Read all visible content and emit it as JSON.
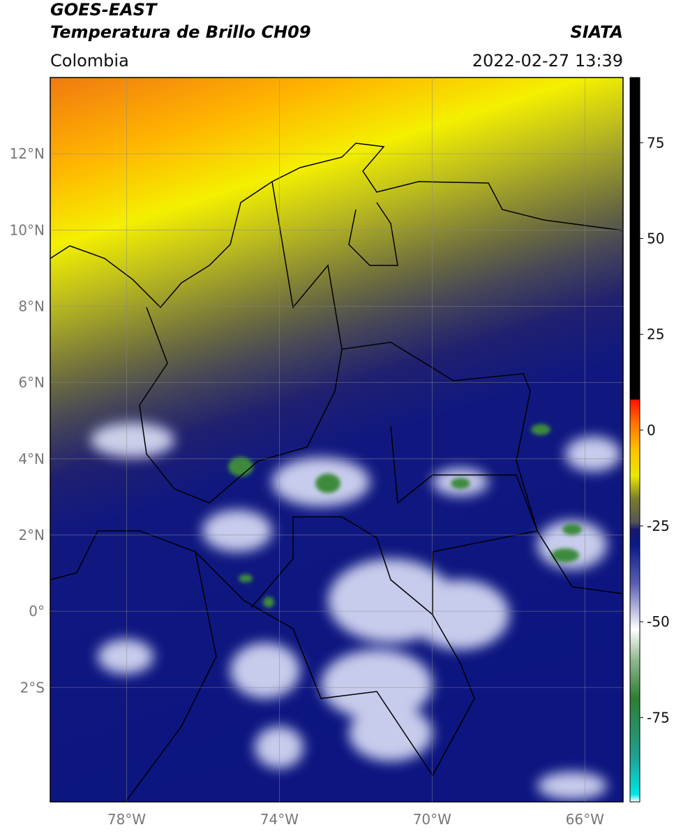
{
  "header": {
    "title_line1": "GOES-EAST",
    "title_line2": "Temperatura de Brillo CH09",
    "source": "SIATA",
    "region": "Colombia",
    "timestamp": "2022-02-27 13:39"
  },
  "map": {
    "xlim": [
      -80,
      -65
    ],
    "ylim": [
      -5,
      14
    ],
    "xticks": [
      {
        "value": -78,
        "label": "78°W"
      },
      {
        "value": -74,
        "label": "74°W"
      },
      {
        "value": -70,
        "label": "70°W"
      },
      {
        "value": -66,
        "label": "66°W"
      }
    ],
    "yticks": [
      {
        "value": 12,
        "label": "12°N"
      },
      {
        "value": 10,
        "label": "10°N"
      },
      {
        "value": 8,
        "label": "8°N"
      },
      {
        "value": 6,
        "label": "6°N"
      },
      {
        "value": 4,
        "label": "4°N"
      },
      {
        "value": 2,
        "label": "2°N"
      },
      {
        "value": 0,
        "label": "0°"
      },
      {
        "value": -2,
        "label": "2°S"
      }
    ],
    "grid": true
  },
  "colorbar": {
    "lim": [
      -97,
      92
    ],
    "ticks": [
      75,
      50,
      25,
      0,
      -25,
      -50,
      -75
    ],
    "stops": [
      {
        "value": -97,
        "color": "#ffffff"
      },
      {
        "value": -95,
        "color": "#00e5e5"
      },
      {
        "value": -85,
        "color": "#20a090"
      },
      {
        "value": -70,
        "color": "#2e7d32"
      },
      {
        "value": -60,
        "color": "#90b890"
      },
      {
        "value": -52,
        "color": "#ffffff"
      },
      {
        "value": -40,
        "color": "#5a5fb0"
      },
      {
        "value": -30,
        "color": "#0a1a8a"
      },
      {
        "value": -26,
        "color": "#16186e"
      },
      {
        "value": -24,
        "color": "#555555"
      },
      {
        "value": -18,
        "color": "#7a7a30"
      },
      {
        "value": -12,
        "color": "#e8e800"
      },
      {
        "value": -5,
        "color": "#ffc000"
      },
      {
        "value": 2,
        "color": "#ff7000"
      },
      {
        "value": 8,
        "color": "#ff1000"
      },
      {
        "value": 8.01,
        "color": "#000000"
      },
      {
        "value": 92,
        "color": "#000000"
      }
    ]
  }
}
